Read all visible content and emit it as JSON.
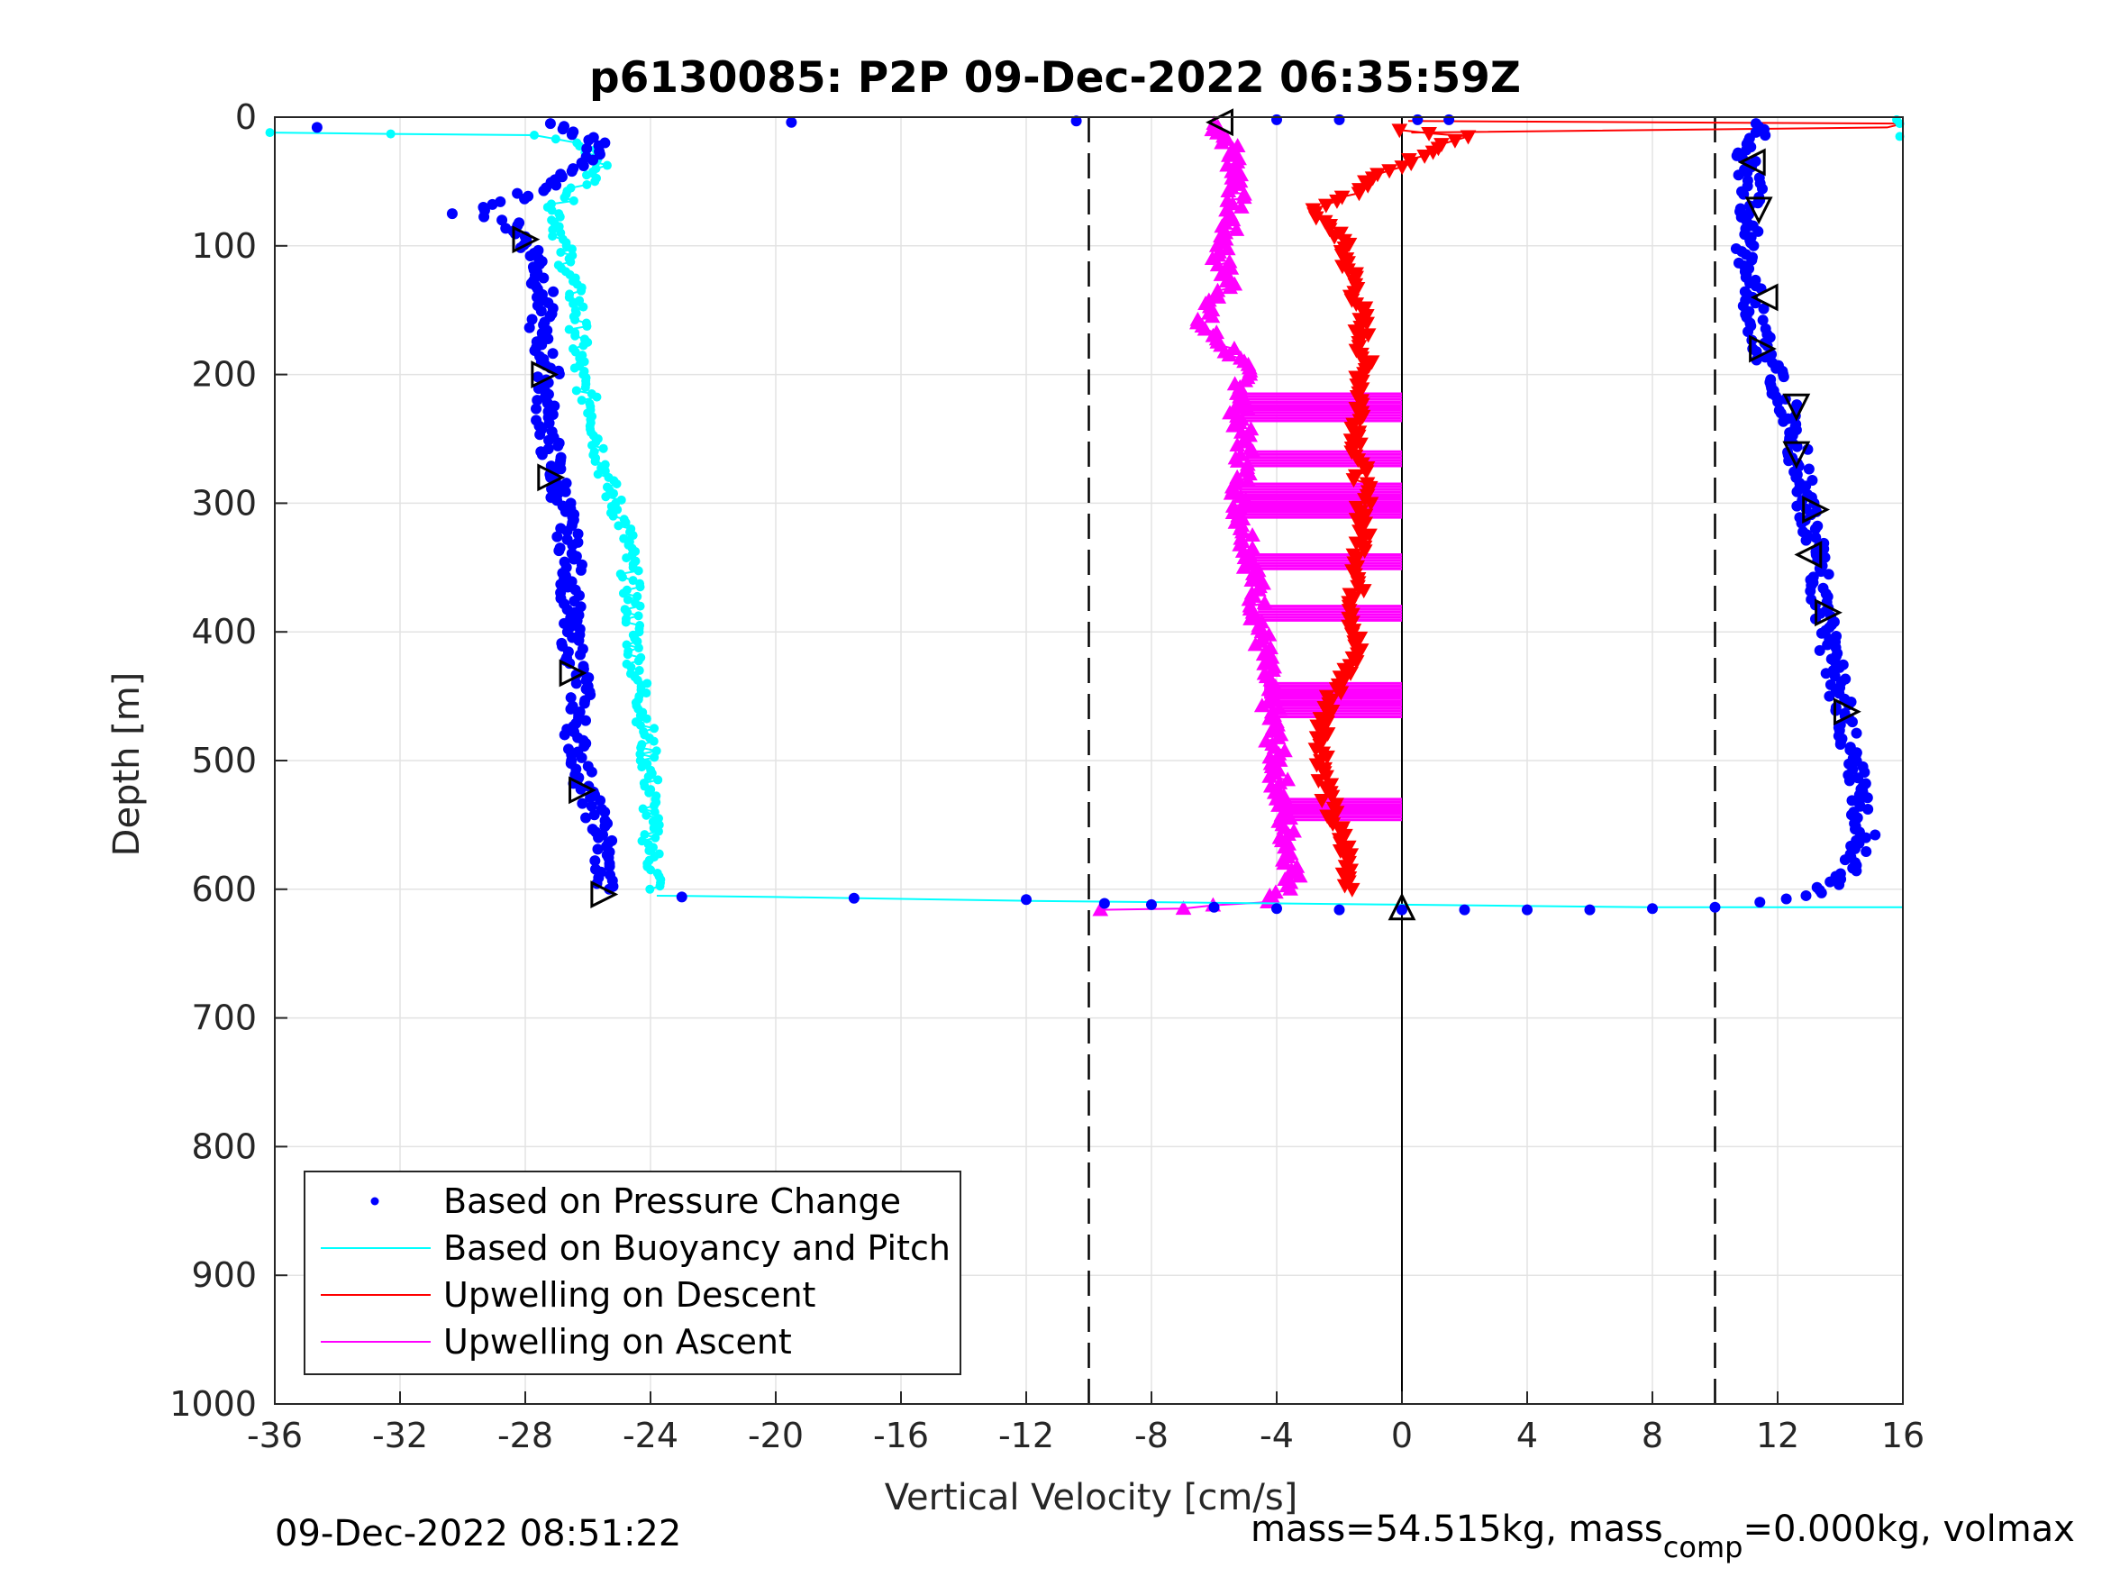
{
  "chart_data": {
    "type": "scatter",
    "title": "p6130085: P2P 09-Dec-2022 06:35:59Z",
    "xlabel": "Vertical Velocity [cm/s]",
    "ylabel": "Depth [m]",
    "xlim": [
      -36,
      16
    ],
    "ylim": [
      0,
      1000
    ],
    "y_reversed": true,
    "xticks": [
      "-36",
      "-32",
      "-28",
      "-24",
      "-20",
      "-16",
      "-12",
      "-8",
      "-4",
      "0",
      "4",
      "8",
      "12",
      "16"
    ],
    "yticks": [
      "0",
      "100",
      "200",
      "300",
      "400",
      "500",
      "600",
      "700",
      "800",
      "900",
      "1000"
    ],
    "grid": true,
    "threshold_lines_x": [
      -10,
      10
    ],
    "zero_line_x": 0,
    "legend_position": "bottom-left",
    "series": [
      {
        "name": "Based on Pressure Change",
        "color": "#0000ff",
        "marker": "dot",
        "descent": [
          [
            -34.9,
            8
          ],
          [
            -27.2,
            5
          ],
          [
            -25.6,
            20
          ],
          [
            -26.3,
            40
          ],
          [
            -27.5,
            55
          ],
          [
            -29,
            70
          ],
          [
            -30,
            75
          ],
          [
            -28.6,
            80
          ],
          [
            -28,
            95
          ],
          [
            -27.6,
            110
          ],
          [
            -27.4,
            140
          ],
          [
            -27.6,
            170
          ],
          [
            -27.2,
            195
          ],
          [
            -27.4,
            220
          ],
          [
            -27.2,
            260
          ],
          [
            -26.8,
            300
          ],
          [
            -26.5,
            350
          ],
          [
            -26.6,
            400
          ],
          [
            -26.2,
            440
          ],
          [
            -26.4,
            480
          ],
          [
            -26.1,
            520
          ],
          [
            -25.5,
            560
          ],
          [
            -25.5,
            600
          ]
        ],
        "ascent": [
          [
            11.5,
            610
          ],
          [
            13,
            605
          ],
          [
            14.2,
            590
          ],
          [
            14.8,
            560
          ],
          [
            14.5,
            520
          ],
          [
            14.2,
            470
          ],
          [
            13.8,
            430
          ],
          [
            13.5,
            390
          ],
          [
            13.2,
            340
          ],
          [
            12.8,
            280
          ],
          [
            12.4,
            230
          ],
          [
            11.5,
            180
          ],
          [
            11.2,
            140
          ],
          [
            11,
            100
          ],
          [
            11.2,
            60
          ],
          [
            11,
            30
          ],
          [
            11.5,
            5
          ]
        ],
        "bottom_points": [
          [
            -23,
            606
          ],
          [
            -17.5,
            607
          ],
          [
            -12,
            608
          ],
          [
            -9.5,
            611
          ],
          [
            -8,
            612
          ],
          [
            -6,
            614
          ],
          [
            -4,
            615
          ],
          [
            -2,
            616
          ],
          [
            0,
            616
          ],
          [
            2,
            616
          ],
          [
            4,
            616
          ],
          [
            6,
            616
          ],
          [
            8,
            615
          ],
          [
            10,
            614
          ]
        ],
        "surface_points": [
          [
            -19.5,
            4
          ],
          [
            -10.4,
            3
          ],
          [
            -4,
            2
          ],
          [
            -2,
            2
          ],
          [
            0.5,
            2
          ],
          [
            1.5,
            2
          ]
        ]
      },
      {
        "name": "Based on Buoyancy and Pitch",
        "color": "#00ffff",
        "marker": "line+circle",
        "descent": [
          [
            -36,
            12
          ],
          [
            -32,
            13
          ],
          [
            -28,
            14
          ],
          [
            -26.2,
            20
          ],
          [
            -25.5,
            40
          ],
          [
            -26.5,
            60
          ],
          [
            -27,
            70
          ],
          [
            -26.8,
            100
          ],
          [
            -26.3,
            150
          ],
          [
            -26.3,
            200
          ],
          [
            -25.8,
            230
          ],
          [
            -25.6,
            260
          ],
          [
            -25.3,
            290
          ],
          [
            -24.8,
            320
          ],
          [
            -24.6,
            370
          ],
          [
            -24.5,
            420
          ],
          [
            -24.2,
            460
          ],
          [
            -24,
            520
          ],
          [
            -24,
            560
          ],
          [
            -23.8,
            600
          ]
        ],
        "bottom_line": [
          [
            -23.8,
            605
          ],
          [
            -20,
            606
          ],
          [
            -12,
            609
          ],
          [
            -4,
            611
          ],
          [
            0,
            612
          ],
          [
            4,
            613
          ],
          [
            8,
            614
          ],
          [
            12,
            614
          ],
          [
            16,
            614
          ]
        ],
        "surface_points": [
          [
            15.8,
            2
          ],
          [
            15.9,
            5
          ],
          [
            15.9,
            15
          ]
        ]
      },
      {
        "name": "Upwelling on Descent",
        "color": "#ff0000",
        "marker": "triangle-down",
        "values": [
          [
            0,
            10
          ],
          [
            2,
            15
          ],
          [
            0.5,
            30
          ],
          [
            -1,
            50
          ],
          [
            -2,
            65
          ],
          [
            -3,
            75
          ],
          [
            -2,
            90
          ],
          [
            -1.8,
            110
          ],
          [
            -1.5,
            130
          ],
          [
            -1.3,
            160
          ],
          [
            -1.2,
            190
          ],
          [
            -1.3,
            220
          ],
          [
            -1.4,
            260
          ],
          [
            -1.2,
            300
          ],
          [
            -1.3,
            340
          ],
          [
            -1.5,
            380
          ],
          [
            -1.5,
            420
          ],
          [
            -2.2,
            450
          ],
          [
            -2.5,
            470
          ],
          [
            -2.5,
            500
          ],
          [
            -2.3,
            540
          ],
          [
            -1.8,
            570
          ],
          [
            -1.6,
            600
          ]
        ],
        "surface_line": [
          [
            0.2,
            3
          ],
          [
            16,
            5
          ],
          [
            15.5,
            8
          ],
          [
            0.3,
            12
          ]
        ],
        "segments_to_zero": [
          215,
          225,
          260,
          285,
          295,
          300,
          340,
          380,
          440,
          445,
          455,
          530,
          535
        ]
      },
      {
        "name": "Upwelling on Ascent",
        "color": "#ff00ff",
        "marker": "triangle-up",
        "values": [
          [
            -6,
            5
          ],
          [
            -5.5,
            20
          ],
          [
            -5.2,
            50
          ],
          [
            -5.5,
            80
          ],
          [
            -5.8,
            110
          ],
          [
            -5.5,
            130
          ],
          [
            -6.5,
            160
          ],
          [
            -5.5,
            180
          ],
          [
            -5,
            200
          ],
          [
            -5.2,
            230
          ],
          [
            -5,
            260
          ],
          [
            -5.2,
            300
          ],
          [
            -4.8,
            340
          ],
          [
            -4.6,
            380
          ],
          [
            -4.4,
            420
          ],
          [
            -4.2,
            460
          ],
          [
            -4,
            500
          ],
          [
            -3.8,
            540
          ],
          [
            -3.5,
            580
          ],
          [
            -3.5,
            600
          ],
          [
            -4.5,
            610
          ],
          [
            -7,
            615
          ],
          [
            -9.5,
            616
          ]
        ]
      }
    ],
    "direction_markers": [
      {
        "x": -5.8,
        "y": 4,
        "dir": "left"
      },
      {
        "x": 11.2,
        "y": 35,
        "dir": "left"
      },
      {
        "x": 11.4,
        "y": 72,
        "dir": "down"
      },
      {
        "x": 11.6,
        "y": 140,
        "dir": "left"
      },
      {
        "x": 11.5,
        "y": 180,
        "dir": "right"
      },
      {
        "x": 12.6,
        "y": 225,
        "dir": "down"
      },
      {
        "x": 12.6,
        "y": 262,
        "dir": "down"
      },
      {
        "x": 13.2,
        "y": 305,
        "dir": "right"
      },
      {
        "x": 13,
        "y": 340,
        "dir": "left"
      },
      {
        "x": 13.6,
        "y": 385,
        "dir": "right"
      },
      {
        "x": 14.2,
        "y": 462,
        "dir": "right"
      },
      {
        "x": -28,
        "y": 95,
        "dir": "right"
      },
      {
        "x": -27.4,
        "y": 200,
        "dir": "right"
      },
      {
        "x": -27.2,
        "y": 280,
        "dir": "right"
      },
      {
        "x": -26.5,
        "y": 432,
        "dir": "right"
      },
      {
        "x": -26.2,
        "y": 523,
        "dir": "right"
      },
      {
        "x": -25.5,
        "y": 604,
        "dir": "right"
      },
      {
        "x": 0,
        "y": 614,
        "dir": "up"
      }
    ],
    "legend": [
      "Based on Pressure Change",
      "Based on Buoyancy and Pitch",
      "Upwelling on Descent",
      "Upwelling on Ascent"
    ]
  },
  "footer": {
    "timestamp": "09-Dec-2022 08:51:22",
    "mass_prefix": "mass=54.515kg, mass",
    "mass_sub": "comp",
    "mass_suffix": "=0.000kg, volmax"
  }
}
